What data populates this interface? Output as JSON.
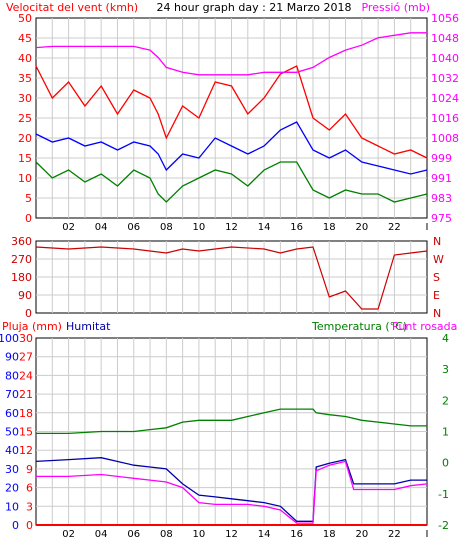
{
  "header": {
    "wind_label": "Velocitat del vent (kmh)",
    "title": "24 hour graph day : 21 Marzo 2018",
    "pressure_label": "Pressió (mb)"
  },
  "colors": {
    "wind_gust": "#ff0000",
    "wind_avg": "#0000ff",
    "wind_min": "#008000",
    "pressure": "#ff00ff",
    "direction": "#cc0000",
    "humidity": "#0000aa",
    "temperature": "#008000",
    "dewpoint": "#ff00ff",
    "rain": "#ff0000",
    "grid": "#cccccc"
  },
  "x_ticks": [
    "02",
    "04",
    "06",
    "08",
    "10",
    "12",
    "14",
    "16",
    "18",
    "20",
    "22",
    "I"
  ],
  "chart_data": [
    {
      "type": "line",
      "name": "wind_pressure",
      "left_axis": {
        "label": "Velocitat del vent (kmh)",
        "ticks": [
          "50",
          "45",
          "40",
          "35",
          "30",
          "25",
          "20",
          "15",
          "10",
          "5",
          "0"
        ],
        "ylim": [
          0,
          50
        ]
      },
      "right_axis": {
        "label": "Pressió (mb)",
        "ticks": [
          "1056",
          "1048",
          "1040",
          "1032",
          "1024",
          "1016",
          "1008",
          "999",
          "991",
          "983",
          "975"
        ],
        "ylim": [
          975,
          1056
        ]
      },
      "x": [
        0,
        1,
        2,
        3,
        4,
        5,
        6,
        7,
        7.5,
        8,
        9,
        10,
        11,
        12,
        13,
        14,
        15,
        16,
        17,
        18,
        19,
        20,
        21,
        22,
        23,
        24
      ],
      "series": [
        {
          "key": "gust",
          "axis": "left",
          "values": [
            38,
            30,
            34,
            28,
            33,
            26,
            32,
            30,
            26,
            20,
            28,
            25,
            34,
            33,
            26,
            30,
            36,
            38,
            25,
            22,
            26,
            20,
            18,
            16,
            17,
            15
          ]
        },
        {
          "key": "avg",
          "axis": "left",
          "values": [
            21,
            19,
            20,
            18,
            19,
            17,
            19,
            18,
            16,
            12,
            16,
            15,
            20,
            18,
            16,
            18,
            22,
            24,
            17,
            15,
            17,
            14,
            13,
            12,
            11,
            12
          ]
        },
        {
          "key": "min",
          "axis": "left",
          "values": [
            14,
            10,
            12,
            9,
            11,
            8,
            12,
            10,
            6,
            4,
            8,
            10,
            12,
            11,
            8,
            12,
            14,
            14,
            7,
            5,
            7,
            6,
            6,
            4,
            5,
            6
          ]
        },
        {
          "key": "pressure",
          "axis": "right",
          "values": [
            1044,
            1044.5,
            1044.5,
            1044.5,
            1044.5,
            1044.5,
            1044.5,
            1043,
            1040,
            1036,
            1034,
            1033,
            1033,
            1033,
            1033,
            1034,
            1034,
            1034,
            1036,
            1040,
            1043,
            1045,
            1048,
            1049,
            1050,
            1050
          ]
        }
      ]
    },
    {
      "type": "line",
      "name": "wind_direction",
      "left_axis": {
        "ticks": [
          "360",
          "270",
          "180",
          "90",
          "0"
        ],
        "ylim": [
          0,
          360
        ]
      },
      "right_axis": {
        "ticks": [
          "N",
          "W",
          "S",
          "E",
          "N"
        ]
      },
      "x": [
        0,
        2,
        4,
        6,
        7,
        8,
        9,
        10,
        12,
        14,
        15,
        16,
        17,
        18,
        19,
        20,
        21,
        22,
        23,
        24
      ],
      "values": [
        330,
        320,
        330,
        320,
        310,
        300,
        320,
        310,
        330,
        320,
        300,
        320,
        330,
        80,
        110,
        20,
        20,
        290,
        300,
        310
      ]
    },
    {
      "type": "line",
      "name": "humidity_temperature",
      "left_axis": {
        "label": "Pluja (mm)",
        "ticks": [
          "100",
          "90",
          "80",
          "70",
          "60",
          "50",
          "40",
          "30",
          "20",
          "10",
          "0"
        ],
        "ylim": [
          0,
          100
        ]
      },
      "left_axis_2": {
        "label": "Humitat",
        "ticks": [
          "30",
          "27",
          "24",
          "21",
          "18",
          "15",
          "12",
          "9",
          "6",
          "3",
          "0"
        ],
        "ylim": [
          0,
          30
        ]
      },
      "right_axis": {
        "label": "Temperatura (°C)",
        "ticks": [
          "4",
          "3",
          "2",
          "1",
          "0",
          "-1",
          "-2"
        ]
      },
      "legend": [
        "Temperatura (°C)",
        "Punt rosada"
      ],
      "x": [
        0,
        2,
        4,
        6,
        7,
        8,
        9,
        10,
        11,
        12,
        13,
        14,
        15,
        16,
        17,
        17.2,
        18,
        19,
        19.5,
        20,
        21,
        22,
        23,
        24
      ],
      "series": [
        {
          "key": "temperature",
          "values": [
            49,
            49,
            50,
            50,
            51,
            52,
            55,
            56,
            56,
            56,
            58,
            60,
            62,
            62,
            62,
            60,
            59,
            58,
            57,
            56,
            55,
            54,
            53,
            53
          ]
        },
        {
          "key": "humidity",
          "values": [
            34,
            35,
            36,
            32,
            31,
            30,
            22,
            16,
            15,
            14,
            13,
            12,
            10,
            2,
            2,
            31,
            33,
            35,
            22,
            22,
            22,
            22,
            24,
            24
          ]
        },
        {
          "key": "dewpoint",
          "values": [
            26,
            26,
            27,
            25,
            24,
            23,
            20,
            12,
            11,
            11,
            11,
            10,
            8,
            1,
            1,
            29,
            32,
            34,
            19,
            19,
            19,
            19,
            21,
            22
          ]
        },
        {
          "key": "rain",
          "values": [
            0,
            0,
            0,
            0,
            0,
            0,
            0,
            0,
            0,
            0,
            0,
            0,
            0,
            0,
            0,
            0,
            0,
            0,
            0,
            0,
            0,
            0,
            0,
            0
          ]
        }
      ]
    }
  ]
}
